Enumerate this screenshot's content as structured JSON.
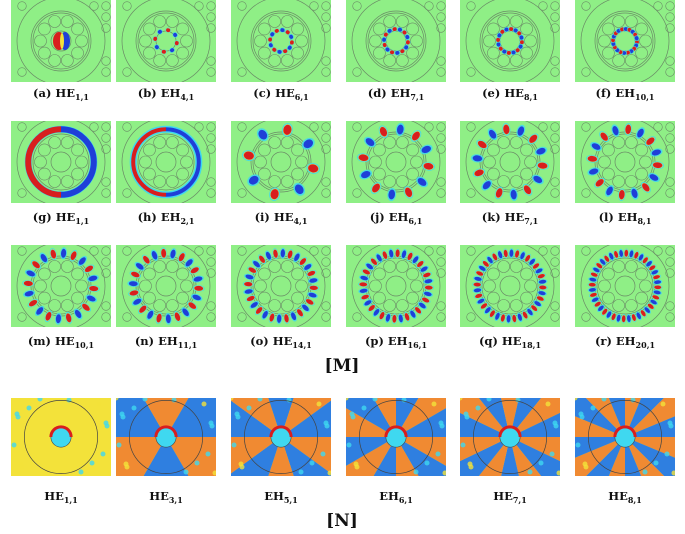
{
  "figure": {
    "sections": [
      {
        "id": "M",
        "label": "[M]",
        "rows": [
          [
            {
              "prefix": "(a) ",
              "mode": "HE",
              "sub": "1,1",
              "style": "core",
              "order": 1
            },
            {
              "prefix": "(b) ",
              "mode": "EH",
              "sub": "4,1",
              "style": "core",
              "order": 4
            },
            {
              "prefix": "(c) ",
              "mode": "HE",
              "sub": "6,1",
              "style": "core",
              "order": 6
            },
            {
              "prefix": "(d) ",
              "mode": "EH",
              "sub": "7,1",
              "style": "core",
              "order": 7
            },
            {
              "prefix": "(e) ",
              "mode": "HE",
              "sub": "8,1",
              "style": "core",
              "order": 8
            },
            {
              "prefix": "(f) ",
              "mode": "EH",
              "sub": "10,1",
              "style": "core",
              "order": 10
            }
          ],
          [
            {
              "prefix": "(g) ",
              "mode": "HE",
              "sub": "1,1",
              "style": "ring",
              "order": 1
            },
            {
              "prefix": "(h) ",
              "mode": "EH",
              "sub": "2,1",
              "style": "ring",
              "order": 2
            },
            {
              "prefix": "(i) ",
              "mode": "HE",
              "sub": "4,1",
              "style": "ring",
              "order": 4
            },
            {
              "prefix": "(j) ",
              "mode": "EH",
              "sub": "6,1",
              "style": "ring",
              "order": 6
            },
            {
              "prefix": "(k) ",
              "mode": "HE",
              "sub": "7,1",
              "style": "ring",
              "order": 7
            },
            {
              "prefix": "(l) ",
              "mode": "EH",
              "sub": "8,1",
              "style": "ring",
              "order": 8
            }
          ],
          [
            {
              "prefix": "(m) ",
              "mode": "HE",
              "sub": "10,1",
              "style": "ring",
              "order": 10
            },
            {
              "prefix": "(n) ",
              "mode": "EH",
              "sub": "11,1",
              "style": "ring",
              "order": 11
            },
            {
              "prefix": "(o) ",
              "mode": "HE",
              "sub": "14,1",
              "style": "ring",
              "order": 14
            },
            {
              "prefix": "(p) ",
              "mode": "EH",
              "sub": "16,1",
              "style": "ring",
              "order": 16
            },
            {
              "prefix": "(q) ",
              "mode": "HE",
              "sub": "18,1",
              "style": "ring",
              "order": 18
            },
            {
              "prefix": "(r) ",
              "mode": "EH",
              "sub": "20,1",
              "style": "ring",
              "order": 20
            }
          ]
        ]
      },
      {
        "id": "N",
        "label": "[N]",
        "rows": [
          [
            {
              "prefix": "",
              "mode": "HE",
              "sub": "1,1",
              "style": "wedge",
              "order": 1
            },
            {
              "prefix": "",
              "mode": "HE",
              "sub": "3,1",
              "style": "wedge",
              "order": 3
            },
            {
              "prefix": "",
              "mode": "EH",
              "sub": "5,1",
              "style": "wedge",
              "order": 5
            },
            {
              "prefix": "",
              "mode": "EH",
              "sub": "6,1",
              "style": "wedge",
              "order": 6
            },
            {
              "prefix": "",
              "mode": "HE",
              "sub": "7,1",
              "style": "wedge",
              "order": 7
            },
            {
              "prefix": "",
              "mode": "HE",
              "sub": "8,1",
              "style": "wedge",
              "order": 8
            }
          ]
        ]
      }
    ],
    "colors": {
      "background_green": "#8fef86",
      "outline_gray": "#6a8a66",
      "field_red": "#d81e1e",
      "field_blue": "#1f3fd8",
      "field_yellow": "#f3e23a",
      "field_cyan": "#3fd8f0",
      "wedge_orange": "#f08a32",
      "wedge_blue": "#2f7fe0"
    }
  }
}
